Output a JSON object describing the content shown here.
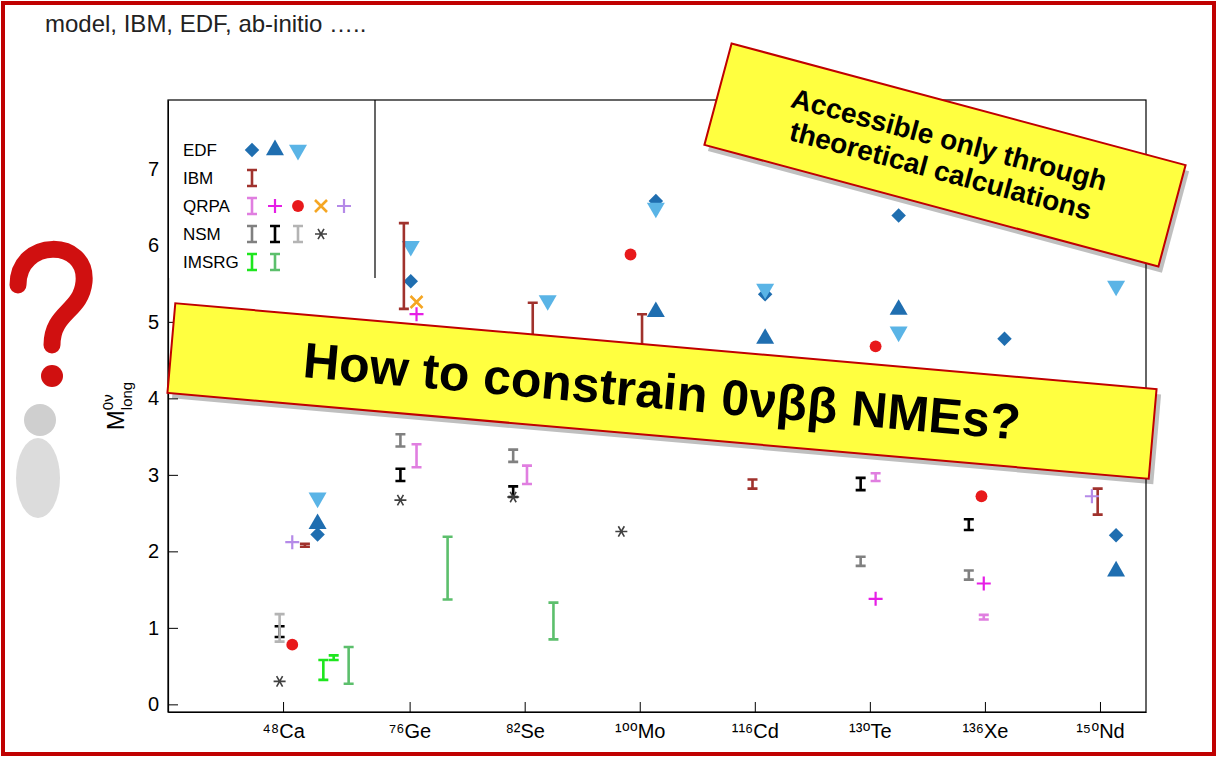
{
  "header": {
    "text": "model, IBM, EDF, ab-initio ….."
  },
  "chart_data": {
    "type": "scatter",
    "ylabel": {
      "text": "M",
      "sup": "0ν",
      "sub": "long"
    },
    "xlim": [
      0,
      8.5
    ],
    "xticks": [
      {
        "value": 1,
        "label": "⁴⁸Ca"
      },
      {
        "value": 2.1,
        "label": "⁷⁶Ge"
      },
      {
        "value": 3.1,
        "label": "⁸²Se"
      },
      {
        "value": 4.1,
        "label": "¹⁰⁰Mo"
      },
      {
        "value": 5.1,
        "label": "¹¹⁶Cd"
      },
      {
        "value": 6.1,
        "label": "¹³⁰Te"
      },
      {
        "value": 7.1,
        "label": "¹³⁶Xe"
      },
      {
        "value": 8.1,
        "label": "¹⁵⁰Nd"
      }
    ],
    "ylim": [
      -0.1,
      7.9
    ],
    "yticks": [
      0,
      1,
      2,
      3,
      4,
      5,
      6,
      7
    ],
    "grid": false,
    "legend": "top-left",
    "annotations": [
      "Accessible only through theoretical calculations",
      "How to constrain 0νββ NMEs?"
    ],
    "series": [
      {
        "name": "EDF",
        "marker": "diamond",
        "color": "#1f6eb0",
        "x": [
          1.3,
          2.11,
          4.24,
          5.19,
          6.35,
          7.27,
          8.24
        ],
        "values": [
          2.22,
          5.53,
          6.58,
          5.36,
          6.39,
          4.78,
          2.21
        ]
      },
      {
        "name": "EDF",
        "marker": "triangle-up",
        "color": "#1f6eb0",
        "x": [
          1.3,
          4.24,
          5.19,
          6.35,
          8.24
        ],
        "values": [
          2.36,
          5.13,
          4.78,
          5.16,
          1.74
        ]
      },
      {
        "name": "EDF",
        "marker": "triangle-down",
        "color": "#5ab4e6",
        "x": [
          1.3,
          2.11,
          3.3,
          4.24,
          5.19,
          6.35,
          8.24
        ],
        "values": [
          2.7,
          5.99,
          5.28,
          6.49,
          5.43,
          4.87,
          5.47
        ]
      },
      {
        "name": "IBM",
        "marker": "errorbar",
        "color": "#a0322d",
        "x": [
          1.19,
          2.05,
          3.17,
          4.12,
          5.08,
          8.08
        ],
        "values": [
          2.08,
          5.73,
          4.85,
          4.75,
          2.88,
          2.65
        ],
        "errors": [
          0.02,
          0.56,
          0.4,
          0.35,
          0.06,
          0.17
        ]
      },
      {
        "name": "QRPA",
        "marker": "errorbar",
        "color": "#e07ee0",
        "x": [
          2.16,
          3.12,
          6.15,
          7.09
        ],
        "values": [
          3.25,
          3.0,
          2.97,
          1.14
        ],
        "errors": [
          0.15,
          0.12,
          0.05,
          0.03
        ]
      },
      {
        "name": "QRPA",
        "marker": "plus",
        "color": "#e61ee6",
        "x": [
          2.16,
          6.15,
          7.09
        ],
        "values": [
          5.1,
          1.38,
          1.58
        ]
      },
      {
        "name": "QRPA",
        "marker": "circle",
        "color": "#e8191b",
        "x": [
          1.08,
          4.02,
          6.15,
          7.07
        ],
        "values": [
          0.78,
          5.88,
          4.68,
          2.72
        ]
      },
      {
        "name": "QRPA",
        "marker": "x",
        "color": "#f5a623",
        "x": [
          2.16
        ],
        "values": [
          5.26
        ]
      },
      {
        "name": "QRPA",
        "marker": "plus",
        "color": "#b58ae8",
        "x": [
          1.08,
          8.03
        ],
        "values": [
          2.12,
          2.72
        ]
      },
      {
        "name": "NSM",
        "marker": "errorbar",
        "color": "#808080",
        "x": [
          2.02,
          3.0,
          6.02,
          6.96
        ],
        "values": [
          3.45,
          3.25,
          1.87,
          1.69
        ],
        "errors": [
          0.08,
          0.08,
          0.06,
          0.06
        ]
      },
      {
        "name": "NSM",
        "marker": "errorbar",
        "color": "#000000",
        "x": [
          0.97,
          2.02,
          3.0,
          6.02,
          6.96
        ],
        "values": [
          0.95,
          3.0,
          2.78,
          2.88,
          2.35
        ],
        "errors": [
          0.07,
          0.08,
          0.07,
          0.08,
          0.07
        ]
      },
      {
        "name": "NSM",
        "marker": "errorbar",
        "color": "#b4b4b4",
        "x": [
          0.97
        ],
        "values": [
          1.0
        ],
        "errors": [
          0.18
        ]
      },
      {
        "name": "NSM",
        "marker": "star",
        "color": "#404040",
        "x": [
          0.97,
          2.02,
          3.0,
          3.94
        ],
        "values": [
          0.3,
          2.67,
          2.71,
          2.26
        ]
      },
      {
        "name": "IMSRG",
        "marker": "errorbar",
        "color": "#1ee61e",
        "x": [
          1.35,
          1.44
        ],
        "values": [
          0.45,
          0.61
        ],
        "errors": [
          0.13,
          0.03
        ]
      },
      {
        "name": "IMSRG",
        "marker": "errorbar",
        "color": "#5cbf6c",
        "x": [
          1.57,
          2.43,
          3.35
        ],
        "values": [
          0.51,
          1.78,
          1.09
        ],
        "errors": [
          0.24,
          0.41,
          0.24
        ]
      }
    ]
  }
}
